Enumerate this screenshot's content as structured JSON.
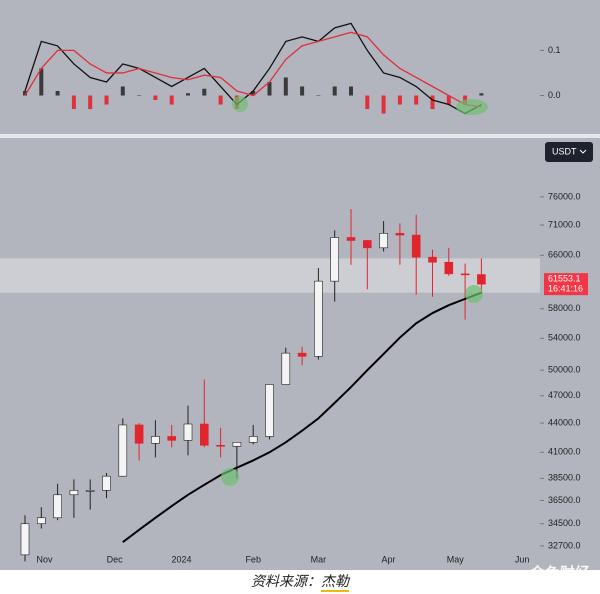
{
  "chart_data": [
    {
      "type": "macd",
      "categories": [
        null,
        null,
        null,
        null,
        null,
        null,
        null,
        null,
        null,
        null,
        null,
        null,
        null,
        null,
        null,
        null,
        null,
        null,
        null,
        null,
        null,
        null,
        null,
        null,
        null,
        null,
        null,
        null,
        null
      ],
      "series": [
        {
          "color": "#111111",
          "values": [
            0.01,
            0.12,
            0.11,
            0.07,
            0.04,
            0.03,
            0.07,
            0.06,
            0.04,
            0.02,
            0.04,
            0.06,
            0.02,
            -0.02,
            0.01,
            0.06,
            0.12,
            0.13,
            0.12,
            0.15,
            0.16,
            0.1,
            0.05,
            0.04,
            0.02,
            -0.01,
            -0.02,
            -0.04,
            -0.02
          ]
        },
        {
          "color": "#e0303a",
          "values": [
            0.0,
            0.06,
            0.1,
            0.1,
            0.07,
            0.05,
            0.05,
            0.06,
            0.05,
            0.04,
            0.035,
            0.045,
            0.04,
            0.01,
            0.0,
            0.03,
            0.08,
            0.11,
            0.12,
            0.13,
            0.14,
            0.13,
            0.09,
            0.06,
            0.04,
            0.02,
            0.0,
            -0.02,
            -0.025
          ]
        }
      ],
      "histogram": {
        "up_color": "#3a3a3a",
        "down_color": "#e0303a",
        "values": [
          0.01,
          0.06,
          0.01,
          -0.03,
          -0.03,
          -0.02,
          0.02,
          0,
          -0.01,
          -0.02,
          0.005,
          0.015,
          -0.02,
          -0.03,
          0.01,
          0.03,
          0.04,
          0.02,
          0,
          0.02,
          0.02,
          -0.03,
          -0.04,
          -0.02,
          -0.02,
          -0.03,
          -0.02,
          -0.02,
          0.005
        ]
      },
      "ylim": [
        -0.072,
        0.194
      ],
      "yticks": [
        0.1,
        {
          "value": 0,
          "label": "0.0"
        }
      ]
    },
    {
      "type": "candlestick",
      "categories": [
        null,
        null,
        null,
        null,
        null,
        null,
        null,
        null,
        null,
        null,
        null,
        null,
        null,
        null,
        null,
        null,
        null,
        null,
        null,
        null,
        null,
        null,
        null,
        null,
        null,
        null,
        null,
        null,
        null
      ],
      "open": [
        32000,
        34500,
        35000,
        37000,
        37400,
        37400,
        38700,
        43800,
        41900,
        42600,
        42200,
        43900,
        41700,
        41600,
        42000,
        42600,
        48300,
        52100,
        51700,
        62000,
        68900,
        68400,
        67200,
        69600,
        69300,
        65700,
        64900,
        63100,
        63000
      ],
      "high": [
        35200,
        35900,
        38000,
        38400,
        38400,
        39000,
        44500,
        44000,
        44300,
        43800,
        45900,
        48900,
        43500,
        41800,
        43800,
        48200,
        52800,
        52900,
        64000,
        70100,
        73800,
        68500,
        71700,
        71300,
        72800,
        66900,
        67200,
        64700,
        65500
      ],
      "low": [
        31500,
        34100,
        34800,
        35000,
        35700,
        36700,
        38700,
        40200,
        40500,
        41500,
        40700,
        41500,
        40500,
        38500,
        41800,
        42300,
        48300,
        50600,
        51300,
        59000,
        64500,
        60800,
        66600,
        64500,
        60000,
        59700,
        62800,
        56500,
        60200
      ],
      "close": [
        34500,
        35000,
        37000,
        37400,
        37400,
        38700,
        43800,
        41900,
        42600,
        42200,
        43900,
        41700,
        41600,
        42000,
        42600,
        48300,
        52100,
        51700,
        62000,
        68900,
        68400,
        67200,
        69600,
        69300,
        65700,
        64900,
        63100,
        63000,
        61553.1
      ],
      "up_color": "#f4f4f4",
      "down_color": "#e0252f",
      "ma": {
        "color": "#000000",
        "values": [
          null,
          null,
          null,
          null,
          null,
          null,
          33000,
          34000,
          35000,
          36000,
          37000,
          37900,
          38800,
          39500,
          40200,
          41000,
          42000,
          43200,
          44500,
          46200,
          48000,
          50000,
          52000,
          54100,
          56000,
          57400,
          58500,
          59400,
          60300
        ]
      },
      "band": {
        "from": 60300,
        "to": 65500,
        "color": "#d3d5da"
      },
      "log_scale": true,
      "ylim": [
        31000,
        87200
      ],
      "yticks": [
        {
          "value": 76000,
          "label": "76000.0"
        },
        {
          "value": 71000,
          "label": "71000.0"
        },
        {
          "value": 66000,
          "label": "66000.0"
        },
        {
          "value": 58000,
          "label": "58000.0"
        },
        {
          "value": 54000,
          "label": "54000.0"
        },
        {
          "value": 50000,
          "label": "50000.0"
        },
        {
          "value": 47000,
          "label": "47000.0"
        },
        {
          "value": 44000,
          "label": "44000.0"
        },
        {
          "value": 41000,
          "label": "41000.0"
        },
        {
          "value": 38500,
          "label": "38500.0"
        },
        {
          "value": 36500,
          "label": "36500.0"
        },
        {
          "value": 34500,
          "label": "34500.0"
        },
        {
          "value": 32700,
          "label": "32700.0"
        }
      ],
      "xlim": [
        -0.5,
        31.5
      ],
      "xticks": [
        {
          "value": 1.2,
          "label": "Nov"
        },
        {
          "value": 5.5,
          "label": "Dec"
        },
        {
          "value": 9.6,
          "label": "2024"
        },
        {
          "value": 14.0,
          "label": "Feb"
        },
        {
          "value": 18.0,
          "label": "Mar"
        },
        {
          "value": 22.3,
          "label": "Apr"
        },
        {
          "value": 26.4,
          "label": "May"
        },
        {
          "value": 30.5,
          "label": "Jun"
        }
      ],
      "last_price": {
        "value": 61553.1,
        "countdown": "16:41:16",
        "color": "#f23645"
      }
    }
  ],
  "toolbar": {
    "currency": "USDT"
  },
  "caption": {
    "source_label": "资料来源：",
    "author": "杰勒"
  },
  "watermark": "金色财经"
}
